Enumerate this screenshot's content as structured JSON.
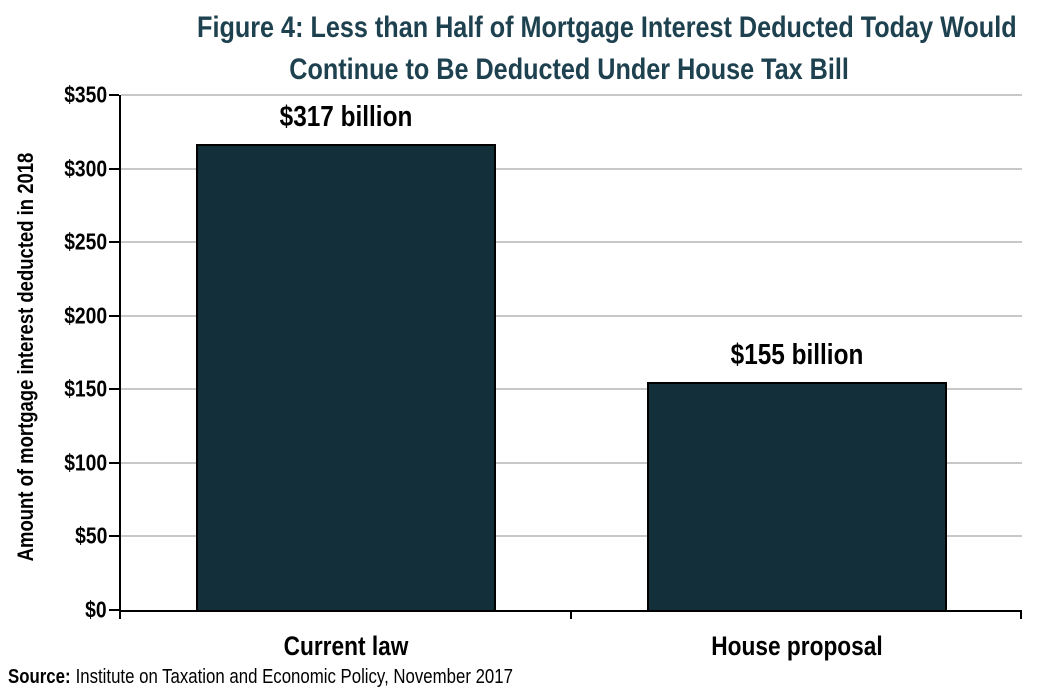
{
  "figure": {
    "title_lines": [
      "Figure 4: Less than Half of Mortgage Interest Deducted Today Would",
      "Continue to Be Deducted Under House Tax Bill"
    ],
    "source_label": "Source:",
    "source_text": "Institute on Taxation and Economic Policy, November 2017"
  },
  "colors": {
    "title": "#1e4150",
    "bar_fill": "#13303a",
    "bar_border": "#000000",
    "gridline": "#c8c8c8",
    "axis": "#000000",
    "text": "#000000"
  },
  "chart_data": {
    "type": "bar",
    "title": "Figure 4: Less than Half of Mortgage Interest Deducted Today Would Continue to Be Deducted Under House Tax Bill",
    "categories": [
      "Current law",
      "House proposal"
    ],
    "values": [
      317,
      155
    ],
    "value_labels": [
      "$317 billion",
      "$155 billion"
    ],
    "xlabel": "",
    "ylabel": "Amount of mortgage interest deducted in 2018",
    "ylim": [
      0,
      350
    ],
    "yticks": [
      {
        "value": 0,
        "label": "$0"
      },
      {
        "value": 50,
        "label": "$50"
      },
      {
        "value": 100,
        "label": "$100"
      },
      {
        "value": 150,
        "label": "$150"
      },
      {
        "value": 200,
        "label": "$200"
      },
      {
        "value": 250,
        "label": "$250"
      },
      {
        "value": 300,
        "label": "$300"
      },
      {
        "value": 350,
        "label": "$350"
      }
    ],
    "grid": "horizontal",
    "legend": "none",
    "source": "Source: Institute on Taxation and Economic Policy, November 2017"
  }
}
